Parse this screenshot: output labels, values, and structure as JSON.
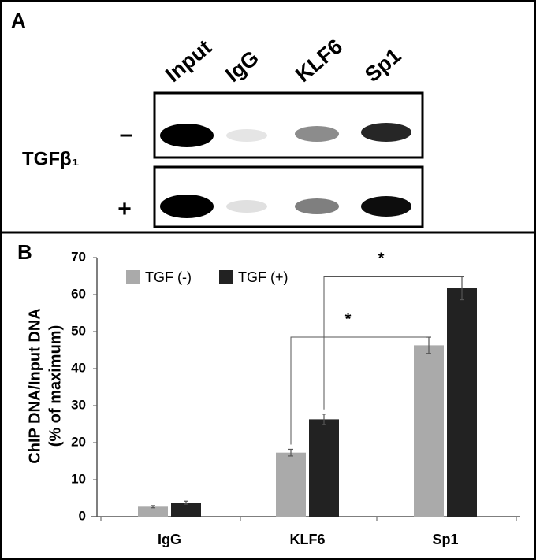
{
  "panel_a": {
    "label": "A",
    "lanes": [
      "Input",
      "IgG",
      "KLF6",
      "Sp1"
    ],
    "treatment": "TGFβ₁",
    "rows": [
      "–",
      "+"
    ]
  },
  "chart_data": {
    "type": "bar",
    "panel_label": "B",
    "ylabel": [
      "ChIP DNA/Input DNA",
      "(% of maximum)"
    ],
    "categories": [
      "IgG",
      "KLF6",
      "Sp1"
    ],
    "series": [
      {
        "name": "TGF (-)",
        "color": "#aaaaaa",
        "values": [
          2.7,
          17.3,
          46.3
        ],
        "errors": [
          0.3,
          0.9,
          2.2
        ]
      },
      {
        "name": "TGF (+)",
        "color": "#222222",
        "values": [
          3.8,
          26.3,
          61.7
        ],
        "errors": [
          0.4,
          1.4,
          3.1
        ]
      }
    ],
    "ylim": [
      0,
      70
    ],
    "yticks": [
      0,
      10,
      20,
      30,
      40,
      50,
      60,
      70
    ],
    "grid": false,
    "legend": "top-left",
    "significance": [
      {
        "label": "*",
        "series": 0
      },
      {
        "label": "*",
        "series": 1
      }
    ]
  }
}
